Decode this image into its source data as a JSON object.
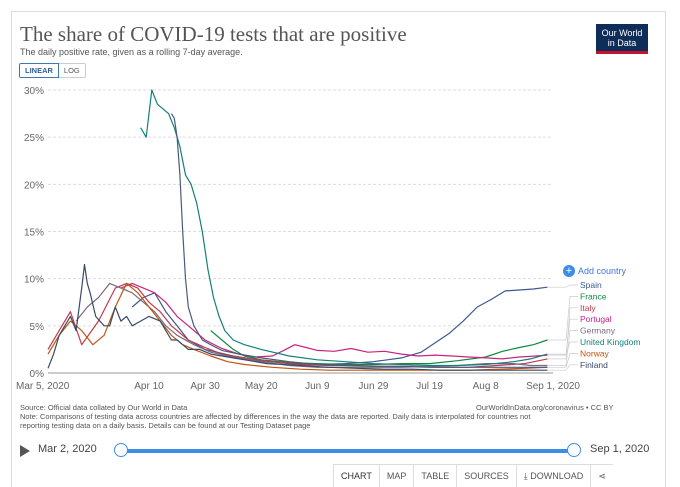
{
  "header": {
    "title": "The share of COVID-19 tests that are positive",
    "subtitle": "The daily positive rate, given as a rolling 7-day average.",
    "logo_line1": "Our World",
    "logo_line2": "in Data"
  },
  "scale": {
    "linear_label": "LINEAR",
    "log_label": "LOG",
    "selected": "linear"
  },
  "add_country_label": "Add country",
  "footer": {
    "source_line1": "Source: Official data collated by Our World in Data",
    "source_line2": "Note: Comparisons of testing data across countries are affected by differences in the way the data are reported. Daily data is interpolated for countries not",
    "source_line3": "reporting testing data on a daily basis. Details can be found at our Testing Dataset page",
    "credit": "OurWorldInData.org/coronavirus • CC BY"
  },
  "timeline": {
    "start_label": "Mar 2, 2020",
    "end_label": "Sep 1, 2020"
  },
  "tabs": {
    "chart": "CHART",
    "map": "MAP",
    "table": "TABLE",
    "sources": "SOURCES",
    "download": "DOWNLOAD"
  },
  "colors": {
    "grid": "#dddddd",
    "axis_text": "#666666"
  },
  "chart_data": {
    "type": "line",
    "title": "The share of COVID-19 tests that are positive",
    "xlabel": "",
    "ylabel": "",
    "x_tick_labels": [
      "Mar 5, 2020",
      "Apr 10",
      "Apr 30",
      "May 20",
      "Jun 9",
      "Jun 29",
      "Jul 19",
      "Aug 8",
      "Sep 1, 2020"
    ],
    "x_tick_days": [
      0,
      36,
      56,
      76,
      96,
      116,
      136,
      156,
      180
    ],
    "x_range_days": [
      0,
      180
    ],
    "y_ticks": [
      0,
      5,
      10,
      15,
      20,
      25,
      30
    ],
    "y_tick_labels": [
      "0%",
      "5%",
      "10%",
      "15%",
      "20%",
      "25%",
      "30%"
    ],
    "ylim": [
      0,
      30
    ],
    "grid": true,
    "legend_position": "right",
    "series": [
      {
        "name": "Spain",
        "color": "#3c5a8f",
        "points": [
          [
            30,
            7.0
          ],
          [
            34,
            8.0
          ],
          [
            38,
            8.5
          ],
          [
            42,
            6.5
          ],
          [
            46,
            5.0
          ],
          [
            50,
            3.5
          ],
          [
            56,
            2.5
          ],
          [
            66,
            1.8
          ],
          [
            76,
            1.3
          ],
          [
            86,
            1.0
          ],
          [
            96,
            0.9
          ],
          [
            106,
            1.0
          ],
          [
            116,
            1.2
          ],
          [
            126,
            1.6
          ],
          [
            133,
            2.2
          ],
          [
            138,
            3.2
          ],
          [
            143,
            4.2
          ],
          [
            148,
            5.5
          ],
          [
            153,
            7.0
          ],
          [
            158,
            7.8
          ],
          [
            163,
            8.7
          ],
          [
            168,
            8.8
          ],
          [
            173,
            8.9
          ],
          [
            178,
            9.1
          ]
        ]
      },
      {
        "name": "France",
        "color": "#0e8a3c",
        "points": [
          [
            58,
            4.5
          ],
          [
            62,
            3.5
          ],
          [
            66,
            2.5
          ],
          [
            70,
            1.8
          ],
          [
            76,
            1.4
          ],
          [
            86,
            1.1
          ],
          [
            96,
            1.0
          ],
          [
            106,
            0.9
          ],
          [
            116,
            0.9
          ],
          [
            126,
            1.0
          ],
          [
            136,
            1.0
          ],
          [
            146,
            1.3
          ],
          [
            156,
            1.7
          ],
          [
            162,
            2.3
          ],
          [
            168,
            2.7
          ],
          [
            173,
            3.0
          ],
          [
            178,
            3.5
          ]
        ]
      },
      {
        "name": "Italy",
        "color": "#c4384b",
        "points": [
          [
            0,
            2.5
          ],
          [
            5,
            5.0
          ],
          [
            8,
            6.5
          ],
          [
            12,
            3.0
          ],
          [
            18,
            5.5
          ],
          [
            24,
            9.0
          ],
          [
            28,
            9.5
          ],
          [
            32,
            9.0
          ],
          [
            36,
            7.5
          ],
          [
            40,
            6.5
          ],
          [
            44,
            5.0
          ],
          [
            50,
            3.5
          ],
          [
            56,
            2.7
          ],
          [
            62,
            2.0
          ],
          [
            70,
            1.6
          ],
          [
            80,
            1.2
          ],
          [
            90,
            0.9
          ],
          [
            100,
            0.8
          ],
          [
            110,
            0.8
          ],
          [
            120,
            0.7
          ],
          [
            130,
            0.7
          ],
          [
            140,
            0.6
          ],
          [
            150,
            0.6
          ],
          [
            160,
            0.8
          ],
          [
            170,
            1.0
          ],
          [
            178,
            1.5
          ]
        ]
      },
      {
        "name": "Portugal",
        "color": "#c9237f",
        "points": [
          [
            26,
            9.0
          ],
          [
            30,
            9.5
          ],
          [
            34,
            9.0
          ],
          [
            38,
            8.5
          ],
          [
            42,
            7.5
          ],
          [
            46,
            6.0
          ],
          [
            50,
            5.0
          ],
          [
            56,
            3.5
          ],
          [
            62,
            2.6
          ],
          [
            68,
            2.0
          ],
          [
            74,
            1.7
          ],
          [
            80,
            1.8
          ],
          [
            84,
            2.4
          ],
          [
            88,
            3.0
          ],
          [
            92,
            2.7
          ],
          [
            96,
            2.4
          ],
          [
            102,
            2.3
          ],
          [
            108,
            2.6
          ],
          [
            114,
            2.2
          ],
          [
            120,
            2.3
          ],
          [
            126,
            2.0
          ],
          [
            132,
            1.8
          ],
          [
            138,
            1.9
          ],
          [
            144,
            1.8
          ],
          [
            150,
            1.7
          ],
          [
            156,
            1.6
          ],
          [
            162,
            1.5
          ],
          [
            168,
            1.7
          ],
          [
            174,
            1.8
          ],
          [
            178,
            1.9
          ]
        ]
      },
      {
        "name": "Germany",
        "color": "#7a6a80",
        "points": [
          [
            10,
            5.5
          ],
          [
            14,
            7.0
          ],
          [
            18,
            8.0
          ],
          [
            22,
            9.5
          ],
          [
            26,
            9.0
          ],
          [
            30,
            8.5
          ],
          [
            34,
            7.5
          ],
          [
            38,
            6.5
          ],
          [
            42,
            5.0
          ],
          [
            46,
            4.0
          ],
          [
            52,
            3.0
          ],
          [
            58,
            2.2
          ],
          [
            64,
            1.8
          ],
          [
            70,
            1.5
          ],
          [
            76,
            1.2
          ],
          [
            86,
            0.8
          ],
          [
            96,
            0.6
          ],
          [
            106,
            0.6
          ],
          [
            116,
            0.6
          ],
          [
            126,
            0.6
          ],
          [
            136,
            0.7
          ],
          [
            146,
            0.8
          ],
          [
            156,
            1.0
          ],
          [
            166,
            1.0
          ],
          [
            172,
            0.8
          ],
          [
            178,
            0.8
          ]
        ]
      },
      {
        "name": "United Kingdom",
        "color": "#14807a",
        "points": [
          [
            33,
            26.0
          ],
          [
            35,
            25.0
          ],
          [
            37,
            30.0
          ],
          [
            39,
            28.5
          ],
          [
            41,
            28.0
          ],
          [
            43,
            27.5
          ],
          [
            45,
            26.0
          ],
          [
            47,
            24.0
          ],
          [
            49,
            21.0
          ],
          [
            51,
            20.0
          ],
          [
            53,
            18.0
          ],
          [
            55,
            15.0
          ],
          [
            57,
            11.0
          ],
          [
            59,
            8.0
          ],
          [
            61,
            6.0
          ],
          [
            63,
            4.5
          ],
          [
            66,
            3.5
          ],
          [
            70,
            3.0
          ],
          [
            76,
            2.5
          ],
          [
            86,
            1.8
          ],
          [
            96,
            1.4
          ],
          [
            106,
            1.2
          ],
          [
            116,
            1.0
          ],
          [
            126,
            0.9
          ],
          [
            136,
            0.8
          ],
          [
            146,
            0.8
          ],
          [
            156,
            0.9
          ],
          [
            166,
            1.2
          ],
          [
            172,
            1.5
          ],
          [
            178,
            2.0
          ]
        ]
      },
      {
        "name": "Norway",
        "color": "#c45411",
        "points": [
          [
            0,
            2.0
          ],
          [
            4,
            4.0
          ],
          [
            8,
            5.5
          ],
          [
            12,
            4.5
          ],
          [
            16,
            3.0
          ],
          [
            20,
            4.0
          ],
          [
            24,
            7.0
          ],
          [
            28,
            9.5
          ],
          [
            32,
            8.5
          ],
          [
            36,
            7.0
          ],
          [
            40,
            5.5
          ],
          [
            44,
            4.0
          ],
          [
            48,
            3.0
          ],
          [
            52,
            2.5
          ],
          [
            58,
            1.8
          ],
          [
            64,
            1.2
          ],
          [
            70,
            0.9
          ],
          [
            80,
            0.6
          ],
          [
            90,
            0.4
          ],
          [
            100,
            0.3
          ],
          [
            110,
            0.3
          ],
          [
            120,
            0.3
          ],
          [
            130,
            0.3
          ],
          [
            140,
            0.3
          ],
          [
            150,
            0.3
          ],
          [
            160,
            0.4
          ],
          [
            170,
            0.5
          ],
          [
            178,
            0.6
          ]
        ]
      },
      {
        "name": "Finland",
        "color": "#3a4a66",
        "points": [
          [
            0,
            0.5
          ],
          [
            2,
            2.0
          ],
          [
            4,
            4.0
          ],
          [
            6,
            5.0
          ],
          [
            8,
            6.0
          ],
          [
            10,
            4.5
          ],
          [
            12,
            9.0
          ],
          [
            13,
            11.5
          ],
          [
            14,
            9.5
          ],
          [
            15,
            8.5
          ],
          [
            17,
            6.0
          ],
          [
            20,
            5.0
          ],
          [
            22,
            5.0
          ],
          [
            24,
            7.0
          ],
          [
            26,
            5.5
          ],
          [
            28,
            6.0
          ],
          [
            30,
            5.0
          ],
          [
            33,
            5.5
          ],
          [
            36,
            6.0
          ],
          [
            40,
            5.5
          ],
          [
            42,
            4.5
          ],
          [
            44,
            3.5
          ],
          [
            46,
            3.5
          ],
          [
            48,
            3.0
          ],
          [
            50,
            2.5
          ],
          [
            54,
            2.5
          ],
          [
            58,
            2.0
          ],
          [
            62,
            1.8
          ],
          [
            66,
            1.6
          ],
          [
            72,
            1.3
          ],
          [
            78,
            1.0
          ],
          [
            84,
            0.9
          ],
          [
            90,
            0.8
          ],
          [
            100,
            0.6
          ],
          [
            110,
            0.5
          ],
          [
            120,
            0.4
          ],
          [
            130,
            0.4
          ],
          [
            140,
            0.3
          ],
          [
            150,
            0.3
          ],
          [
            160,
            0.3
          ],
          [
            170,
            0.3
          ],
          [
            178,
            0.3
          ]
        ]
      },
      {
        "name": "",
        "color": "#4a5a7a",
        "points": [
          [
            44,
            27.5
          ],
          [
            45,
            27.0
          ],
          [
            46,
            25.0
          ],
          [
            47,
            21.0
          ],
          [
            48,
            15.0
          ],
          [
            49,
            10.0
          ],
          [
            50,
            7.0
          ],
          [
            52,
            5.0
          ],
          [
            55,
            3.5
          ],
          [
            58,
            3.0
          ],
          [
            62,
            2.4
          ],
          [
            68,
            2.0
          ],
          [
            76,
            1.6
          ],
          [
            86,
            1.2
          ],
          [
            96,
            0.9
          ],
          [
            106,
            0.8
          ],
          [
            116,
            0.7
          ],
          [
            126,
            0.7
          ],
          [
            136,
            0.6
          ],
          [
            146,
            0.6
          ],
          [
            156,
            0.6
          ],
          [
            166,
            0.6
          ],
          [
            178,
            0.6
          ]
        ]
      }
    ],
    "legend": [
      {
        "name": "Spain",
        "color": "#3c5a8f"
      },
      {
        "name": "France",
        "color": "#0e8a3c"
      },
      {
        "name": "Italy",
        "color": "#c4384b"
      },
      {
        "name": "Portugal",
        "color": "#c9237f"
      },
      {
        "name": "Germany",
        "color": "#7a6a80"
      },
      {
        "name": "United Kingdom",
        "color": "#14807a"
      },
      {
        "name": "Norway",
        "color": "#c45411"
      },
      {
        "name": "Finland",
        "color": "#3a4a66"
      }
    ]
  }
}
